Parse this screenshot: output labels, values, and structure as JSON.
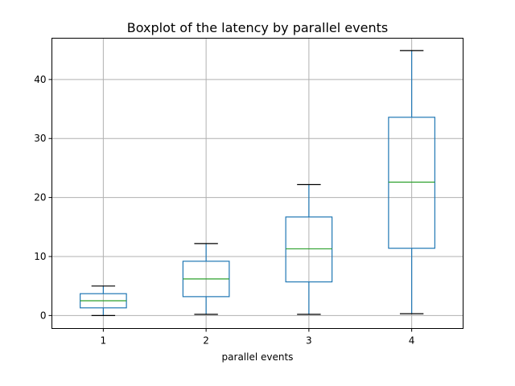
{
  "chart_data": {
    "type": "boxplot",
    "title": "Boxplot of the latency by parallel events",
    "xlabel": "parallel events",
    "ylabel": "",
    "categories": [
      "1",
      "2",
      "3",
      "4"
    ],
    "boxes": [
      {
        "category": "1",
        "whisker_low": 0.0,
        "q1": 1.3,
        "median": 2.5,
        "q3": 3.7,
        "whisker_high": 5.0
      },
      {
        "category": "2",
        "whisker_low": 0.2,
        "q1": 3.2,
        "median": 6.2,
        "q3": 9.2,
        "whisker_high": 12.2
      },
      {
        "category": "3",
        "whisker_low": 0.2,
        "q1": 5.7,
        "median": 11.3,
        "q3": 16.7,
        "whisker_high": 22.2
      },
      {
        "category": "4",
        "whisker_low": 0.3,
        "q1": 11.4,
        "median": 22.6,
        "q3": 33.6,
        "whisker_high": 44.9
      }
    ],
    "yticks": [
      "0",
      "10",
      "20",
      "30",
      "40"
    ],
    "ylim": [
      -2.2,
      47.0
    ],
    "grid": true,
    "colors": {
      "box": "#1f77b4",
      "median": "#2ca02c",
      "cap": "#000000",
      "grid": "#b0b0b0"
    }
  }
}
